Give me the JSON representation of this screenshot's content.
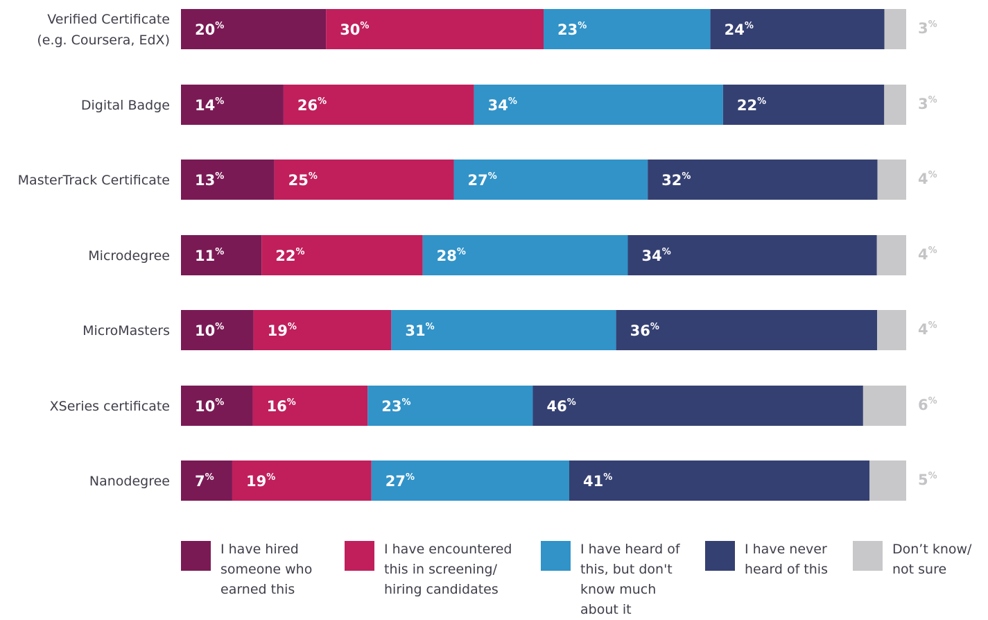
{
  "chart_data": {
    "type": "bar",
    "orientation": "horizontal",
    "stacked": true,
    "percent_symbol": "%",
    "categories": [
      "Verified Certificate\n(e.g. Coursera, EdX)",
      "Digital Badge",
      "MasterTrack Certificate",
      "Microdegree",
      "MicroMasters",
      "XSeries certificate",
      "Nanodegree"
    ],
    "series": [
      {
        "name": "I have hired\nsomeone who\nearned this",
        "color": "#7a1a55",
        "values": [
          20,
          14,
          13,
          11,
          10,
          10,
          7
        ]
      },
      {
        "name": "I have encountered\nthis in screening/\nhiring candidates",
        "color": "#c01f5c",
        "values": [
          30,
          26,
          25,
          22,
          19,
          16,
          19
        ]
      },
      {
        "name": "I have heard of\nthis, but don't\nknow much\nabout it",
        "color": "#3193c8",
        "values": [
          23,
          34,
          27,
          28,
          31,
          23,
          27
        ]
      },
      {
        "name": "I have never\nheard of this",
        "color": "#354072",
        "values": [
          24,
          22,
          32,
          34,
          36,
          46,
          41
        ]
      },
      {
        "name": "Don’t know/\nnot sure",
        "color": "#c8c8ca",
        "values": [
          3,
          3,
          4,
          4,
          4,
          6,
          5
        ]
      }
    ],
    "legend_position": "bottom",
    "grid": false
  }
}
